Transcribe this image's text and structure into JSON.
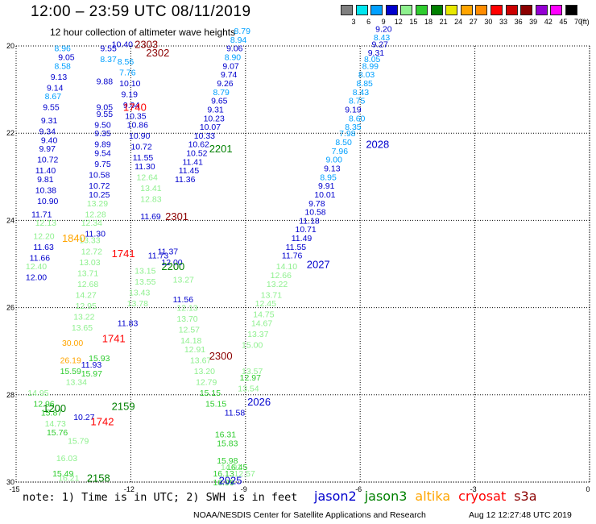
{
  "header": {
    "title": "12:00 – 23:59 UTC 08/11/2019",
    "subtitle": "12 hour collection of altimeter wave heights"
  },
  "color_scale": {
    "labels": [
      "3",
      "6",
      "9",
      "12",
      "15",
      "18",
      "21",
      "24",
      "27",
      "30",
      "33",
      "36",
      "39",
      "42",
      "45",
      "70"
    ],
    "unit": "(ft)",
    "colors": [
      "#808080",
      "#00e5ee",
      "#00a0ff",
      "#0000cd",
      "#8ef08e",
      "#2ecc2e",
      "#008000",
      "#e8e800",
      "#ffa500",
      "#ff8c00",
      "#ff0000",
      "#cc0000",
      "#8b0000",
      "#9400d3",
      "#ff00ff",
      "#000000"
    ]
  },
  "map": {
    "lat_labels": [
      "20",
      "22",
      "24",
      "26",
      "28",
      "30"
    ],
    "lon_labels": [
      "-15",
      "-12",
      "-9",
      "-6",
      "-3",
      "0"
    ]
  },
  "tracks": [
    {
      "sat": "jason2",
      "label": "2028",
      "lon": -5.85,
      "lat": 22.25
    },
    {
      "sat": "jason2",
      "label": "2027",
      "lon": -7.4,
      "lat": 25.0
    },
    {
      "sat": "jason2",
      "label": "2026",
      "lon": -8.95,
      "lat": 28.15
    },
    {
      "sat": "jason2",
      "label": "2025",
      "lon": -9.7,
      "lat": 29.95
    },
    {
      "sat": "jason3",
      "label": "2201",
      "lon": -9.95,
      "lat": 22.35
    },
    {
      "sat": "jason3",
      "label": "2200",
      "lon": -11.2,
      "lat": 25.05
    },
    {
      "sat": "jason3",
      "label": "2159",
      "lon": -12.5,
      "lat": 28.25
    },
    {
      "sat": "jason3",
      "label": "2158",
      "lon": -13.15,
      "lat": 29.9
    },
    {
      "sat": "jason3",
      "label": "1200",
      "lon": -14.3,
      "lat": 28.3
    },
    {
      "sat": "altika",
      "label": "1840",
      "lon": -13.8,
      "lat": 24.4
    },
    {
      "sat": "cryosat",
      "label": "1741",
      "lon": -12.5,
      "lat": 24.75
    },
    {
      "sat": "cryosat",
      "label": "1741",
      "lon": -12.75,
      "lat": 26.7
    },
    {
      "sat": "cryosat",
      "label": "1742",
      "lon": -13.05,
      "lat": 28.6
    },
    {
      "sat": "cryosat",
      "label": "1740",
      "lon": -12.2,
      "lat": 21.4
    },
    {
      "sat": "s3a",
      "label": "2303",
      "lon": -11.9,
      "lat": 19.95
    },
    {
      "sat": "s3a",
      "label": "2302",
      "lon": -11.6,
      "lat": 20.15
    },
    {
      "sat": "s3a",
      "label": "2301",
      "lon": -11.1,
      "lat": 23.9
    },
    {
      "sat": "s3a",
      "label": "2300",
      "lon": -9.95,
      "lat": 27.1
    }
  ],
  "wave_labels": [
    {
      "t": "8.96",
      "c": "#00a0ff",
      "lon": -14.0,
      "lat": 20.05
    },
    {
      "t": "9.05",
      "c": "#0000cd",
      "lon": -13.9,
      "lat": 20.25
    },
    {
      "t": "8.58",
      "c": "#00a0ff",
      "lon": -14.0,
      "lat": 20.45
    },
    {
      "t": "9.13",
      "c": "#0000cd",
      "lon": -14.1,
      "lat": 20.7
    },
    {
      "t": "9.14",
      "c": "#0000cd",
      "lon": -14.2,
      "lat": 20.95
    },
    {
      "t": "8.67",
      "c": "#00a0ff",
      "lon": -14.25,
      "lat": 21.15
    },
    {
      "t": "9.55",
      "c": "#0000cd",
      "lon": -14.3,
      "lat": 21.4
    },
    {
      "t": "9.31",
      "c": "#0000cd",
      "lon": -14.35,
      "lat": 21.7
    },
    {
      "t": "9.34",
      "c": "#0000cd",
      "lon": -14.4,
      "lat": 21.95
    },
    {
      "t": "9.40",
      "c": "#0000cd",
      "lon": -14.35,
      "lat": 22.15
    },
    {
      "t": "9.97",
      "c": "#0000cd",
      "lon": -14.4,
      "lat": 22.35
    },
    {
      "t": "10.72",
      "c": "#0000cd",
      "lon": -14.45,
      "lat": 22.6
    },
    {
      "t": "11.40",
      "c": "#0000cd",
      "lon": -14.5,
      "lat": 22.85
    },
    {
      "t": "9.81",
      "c": "#0000cd",
      "lon": -14.45,
      "lat": 23.05
    },
    {
      "t": "10.38",
      "c": "#0000cd",
      "lon": -14.5,
      "lat": 23.3
    },
    {
      "t": "10.90",
      "c": "#0000cd",
      "lon": -14.45,
      "lat": 23.55
    },
    {
      "t": "11.71",
      "c": "#0000cd",
      "lon": -14.6,
      "lat": 23.85
    },
    {
      "t": "12.13",
      "c": "#8ef08e",
      "lon": -14.5,
      "lat": 24.05
    },
    {
      "t": "12.20",
      "c": "#8ef08e",
      "lon": -14.55,
      "lat": 24.35
    },
    {
      "t": "11.63",
      "c": "#0000cd",
      "lon": -14.55,
      "lat": 24.6
    },
    {
      "t": "11.66",
      "c": "#0000cd",
      "lon": -14.65,
      "lat": 24.85
    },
    {
      "t": "12.40",
      "c": "#8ef08e",
      "lon": -14.75,
      "lat": 25.05
    },
    {
      "t": "12.00",
      "c": "#0000cd",
      "lon": -14.75,
      "lat": 25.3
    },
    {
      "t": "9.88",
      "c": "#0000cd",
      "lon": -12.9,
      "lat": 20.8
    },
    {
      "t": "9.05",
      "c": "#0000cd",
      "lon": -12.9,
      "lat": 21.4
    },
    {
      "t": "9.55",
      "c": "#0000cd",
      "lon": -12.9,
      "lat": 21.55
    },
    {
      "t": "9.50",
      "c": "#0000cd",
      "lon": -12.95,
      "lat": 21.8
    },
    {
      "t": "9.35",
      "c": "#0000cd",
      "lon": -12.95,
      "lat": 22.0
    },
    {
      "t": "9.89",
      "c": "#0000cd",
      "lon": -12.95,
      "lat": 22.25
    },
    {
      "t": "9.54",
      "c": "#0000cd",
      "lon": -12.95,
      "lat": 22.45
    },
    {
      "t": "9.75",
      "c": "#0000cd",
      "lon": -12.95,
      "lat": 22.7
    },
    {
      "t": "10.58",
      "c": "#0000cd",
      "lon": -13.1,
      "lat": 22.95
    },
    {
      "t": "10.72",
      "c": "#0000cd",
      "lon": -13.1,
      "lat": 23.2
    },
    {
      "t": "10.25",
      "c": "#0000cd",
      "lon": -13.1,
      "lat": 23.4
    },
    {
      "t": "13.29",
      "c": "#8ef08e",
      "lon": -13.15,
      "lat": 23.6
    },
    {
      "t": "12.28",
      "c": "#8ef08e",
      "lon": -13.2,
      "lat": 23.85
    },
    {
      "t": "12.34",
      "c": "#8ef08e",
      "lon": -13.3,
      "lat": 24.05
    },
    {
      "t": "11.30",
      "c": "#0000cd",
      "lon": -13.2,
      "lat": 24.3
    },
    {
      "t": "13.33",
      "c": "#8ef08e",
      "lon": -13.35,
      "lat": 24.45
    },
    {
      "t": "12.72",
      "c": "#8ef08e",
      "lon": -13.3,
      "lat": 24.7
    },
    {
      "t": "13.03",
      "c": "#8ef08e",
      "lon": -13.35,
      "lat": 24.95
    },
    {
      "t": "13.71",
      "c": "#8ef08e",
      "lon": -13.4,
      "lat": 25.2
    },
    {
      "t": "12.68",
      "c": "#8ef08e",
      "lon": -13.4,
      "lat": 25.45
    },
    {
      "t": "14.27",
      "c": "#8ef08e",
      "lon": -13.45,
      "lat": 25.7
    },
    {
      "t": "12.95",
      "c": "#8ef08e",
      "lon": -13.45,
      "lat": 25.95
    },
    {
      "t": "13.22",
      "c": "#8ef08e",
      "lon": -13.5,
      "lat": 26.2
    },
    {
      "t": "13.65",
      "c": "#8ef08e",
      "lon": -13.55,
      "lat": 26.45
    },
    {
      "t": "30.00",
      "c": "#ffa500",
      "lon": -13.8,
      "lat": 26.8
    },
    {
      "t": "26.19",
      "c": "#ffa500",
      "lon": -13.85,
      "lat": 27.2
    },
    {
      "t": "15.59",
      "c": "#2ecc2e",
      "lon": -13.85,
      "lat": 27.45
    },
    {
      "t": "13.34",
      "c": "#8ef08e",
      "lon": -13.7,
      "lat": 27.7
    },
    {
      "t": "14.95",
      "c": "#8ef08e",
      "lon": -14.7,
      "lat": 27.95
    },
    {
      "t": "12.96",
      "c": "#2ecc2e",
      "lon": -14.55,
      "lat": 28.2
    },
    {
      "t": "15.87",
      "c": "#2ecc2e",
      "lon": -14.35,
      "lat": 28.4
    },
    {
      "t": "14.73",
      "c": "#8ef08e",
      "lon": -14.25,
      "lat": 28.65
    },
    {
      "t": "15.76",
      "c": "#2ecc2e",
      "lon": -14.2,
      "lat": 28.85
    },
    {
      "t": "10.27",
      "c": "#0000cd",
      "lon": -13.5,
      "lat": 28.5
    },
    {
      "t": "11.93",
      "c": "#0000cd",
      "lon": -13.3,
      "lat": 27.3
    },
    {
      "t": "15.93",
      "c": "#2ecc2e",
      "lon": -13.1,
      "lat": 27.15
    },
    {
      "t": "15.97",
      "c": "#2ecc2e",
      "lon": -13.3,
      "lat": 27.5
    },
    {
      "t": "16.21",
      "c": "#8ef08e",
      "lon": -13.9,
      "lat": 29.9
    },
    {
      "t": "15.79",
      "c": "#8ef08e",
      "lon": -13.65,
      "lat": 29.05
    },
    {
      "t": "16.03",
      "c": "#8ef08e",
      "lon": -13.95,
      "lat": 29.45
    },
    {
      "t": "15.49",
      "c": "#2ecc2e",
      "lon": -14.05,
      "lat": 29.8
    },
    {
      "t": "11.83",
      "c": "#0000cd",
      "lon": -12.35,
      "lat": 26.35
    },
    {
      "t": "11.73",
      "c": "#0000cd",
      "lon": -11.55,
      "lat": 24.8
    },
    {
      "t": "12.00",
      "c": "#0000cd",
      "lon": -11.2,
      "lat": 24.95
    },
    {
      "t": "11.37",
      "c": "#0000cd",
      "lon": -11.3,
      "lat": 24.7
    },
    {
      "t": "11.69",
      "c": "#0000cd",
      "lon": -11.75,
      "lat": 23.9
    },
    {
      "t": "12.83",
      "c": "#8ef08e",
      "lon": -11.75,
      "lat": 23.5
    },
    {
      "t": "13.41",
      "c": "#8ef08e",
      "lon": -11.75,
      "lat": 23.25
    },
    {
      "t": "12.64",
      "c": "#8ef08e",
      "lon": -11.85,
      "lat": 23.0
    },
    {
      "t": "11.30",
      "c": "#0000cd",
      "lon": -11.9,
      "lat": 22.75
    },
    {
      "t": "11.55",
      "c": "#0000cd",
      "lon": -11.95,
      "lat": 22.55
    },
    {
      "t": "10.72",
      "c": "#0000cd",
      "lon": -12.0,
      "lat": 22.3
    },
    {
      "t": "10.90",
      "c": "#0000cd",
      "lon": -12.05,
      "lat": 22.05
    },
    {
      "t": "10.86",
      "c": "#0000cd",
      "lon": -12.1,
      "lat": 21.8
    },
    {
      "t": "10.35",
      "c": "#0000cd",
      "lon": -12.15,
      "lat": 21.6
    },
    {
      "t": "9.94",
      "c": "#0000cd",
      "lon": -12.2,
      "lat": 21.35
    },
    {
      "t": "9.19",
      "c": "#0000cd",
      "lon": -12.25,
      "lat": 21.1
    },
    {
      "t": "10.10",
      "c": "#0000cd",
      "lon": -12.3,
      "lat": 20.85
    },
    {
      "t": "7.76",
      "c": "#00a0ff",
      "lon": -12.3,
      "lat": 20.6
    },
    {
      "t": "8.56",
      "c": "#00a0ff",
      "lon": -12.35,
      "lat": 20.35
    },
    {
      "t": "8.37",
      "c": "#00a0ff",
      "lon": -12.8,
      "lat": 20.3
    },
    {
      "t": "10.40",
      "c": "#0000cd",
      "lon": -12.5,
      "lat": 19.95
    },
    {
      "t": "9.55",
      "c": "#0000cd",
      "lon": -12.8,
      "lat": 20.05
    },
    {
      "t": "13.15",
      "c": "#8ef08e",
      "lon": -11.9,
      "lat": 25.15
    },
    {
      "t": "13.55",
      "c": "#8ef08e",
      "lon": -11.9,
      "lat": 25.4
    },
    {
      "t": "13.43",
      "c": "#8ef08e",
      "lon": -12.05,
      "lat": 25.65
    },
    {
      "t": "13.78",
      "c": "#8ef08e",
      "lon": -12.1,
      "lat": 25.9
    },
    {
      "t": "11.56",
      "c": "#0000cd",
      "lon": -10.9,
      "lat": 25.8
    },
    {
      "t": "13.27",
      "c": "#8ef08e",
      "lon": -10.9,
      "lat": 25.35
    },
    {
      "t": "12.13",
      "c": "#8ef08e",
      "lon": -10.8,
      "lat": 26.0
    },
    {
      "t": "13.70",
      "c": "#8ef08e",
      "lon": -10.8,
      "lat": 26.25
    },
    {
      "t": "12.57",
      "c": "#8ef08e",
      "lon": -10.75,
      "lat": 26.5
    },
    {
      "t": "14.18",
      "c": "#8ef08e",
      "lon": -10.7,
      "lat": 26.75
    },
    {
      "t": "12.91",
      "c": "#8ef08e",
      "lon": -10.6,
      "lat": 26.95
    },
    {
      "t": "13.67",
      "c": "#8ef08e",
      "lon": -10.45,
      "lat": 27.2
    },
    {
      "t": "13.20",
      "c": "#8ef08e",
      "lon": -10.35,
      "lat": 27.45
    },
    {
      "t": "12.79",
      "c": "#8ef08e",
      "lon": -10.3,
      "lat": 27.7
    },
    {
      "t": "15.15",
      "c": "#2ecc2e",
      "lon": -10.2,
      "lat": 27.95
    },
    {
      "t": "15.15",
      "c": "#2ecc2e",
      "lon": -10.05,
      "lat": 28.2
    },
    {
      "t": "11.58",
      "c": "#0000cd",
      "lon": -9.55,
      "lat": 28.4
    },
    {
      "t": "16.31",
      "c": "#2ecc2e",
      "lon": -9.8,
      "lat": 28.9
    },
    {
      "t": "15.83",
      "c": "#2ecc2e",
      "lon": -9.75,
      "lat": 29.1
    },
    {
      "t": "15.98",
      "c": "#2ecc2e",
      "lon": -9.75,
      "lat": 29.5
    },
    {
      "t": "16.45",
      "c": "#2ecc2e",
      "lon": -9.5,
      "lat": 29.65
    },
    {
      "t": "16.13",
      "c": "#2ecc2e",
      "lon": -9.85,
      "lat": 29.8
    },
    {
      "t": "16.99",
      "c": "#2ecc2e",
      "lon": -9.85,
      "lat": 30.0
    },
    {
      "t": "14.91",
      "c": "#8ef08e",
      "lon": -9.65,
      "lat": 29.65
    },
    {
      "t": "12.57",
      "c": "#8ef08e",
      "lon": -9.3,
      "lat": 29.8
    },
    {
      "t": "13.57",
      "c": "#8ef08e",
      "lon": -9.1,
      "lat": 27.45
    },
    {
      "t": "12.97",
      "c": "#2ecc2e",
      "lon": -9.15,
      "lat": 27.6
    },
    {
      "t": "13.54",
      "c": "#8ef08e",
      "lon": -9.2,
      "lat": 27.85
    },
    {
      "t": "15.00",
      "c": "#8ef08e",
      "lon": -9.1,
      "lat": 26.85
    },
    {
      "t": "13.37",
      "c": "#8ef08e",
      "lon": -8.95,
      "lat": 26.6
    },
    {
      "t": "14.67",
      "c": "#8ef08e",
      "lon": -8.85,
      "lat": 26.35
    },
    {
      "t": "14.75",
      "c": "#8ef08e",
      "lon": -8.8,
      "lat": 26.15
    },
    {
      "t": "12.45",
      "c": "#8ef08e",
      "lon": -8.75,
      "lat": 25.9
    },
    {
      "t": "13.71",
      "c": "#8ef08e",
      "lon": -8.6,
      "lat": 25.7
    },
    {
      "t": "13.22",
      "c": "#8ef08e",
      "lon": -8.45,
      "lat": 25.45
    },
    {
      "t": "12.66",
      "c": "#8ef08e",
      "lon": -8.35,
      "lat": 25.25
    },
    {
      "t": "14.10",
      "c": "#8ef08e",
      "lon": -8.2,
      "lat": 25.05
    },
    {
      "t": "11.76",
      "c": "#0000cd",
      "lon": -8.05,
      "lat": 24.8
    },
    {
      "t": "11.55",
      "c": "#0000cd",
      "lon": -7.95,
      "lat": 24.6
    },
    {
      "t": "11.49",
      "c": "#0000cd",
      "lon": -7.8,
      "lat": 24.4
    },
    {
      "t": "10.71",
      "c": "#0000cd",
      "lon": -7.7,
      "lat": 24.2
    },
    {
      "t": "11.18",
      "c": "#0000cd",
      "lon": -7.6,
      "lat": 24.0
    },
    {
      "t": "10.58",
      "c": "#0000cd",
      "lon": -7.45,
      "lat": 23.8
    },
    {
      "t": "9.78",
      "c": "#0000cd",
      "lon": -7.35,
      "lat": 23.6
    },
    {
      "t": "10.01",
      "c": "#0000cd",
      "lon": -7.2,
      "lat": 23.4
    },
    {
      "t": "9.91",
      "c": "#0000cd",
      "lon": -7.1,
      "lat": 23.2
    },
    {
      "t": "8.95",
      "c": "#00a0ff",
      "lon": -7.05,
      "lat": 23.0
    },
    {
      "t": "9.13",
      "c": "#0000cd",
      "lon": -6.95,
      "lat": 22.8
    },
    {
      "t": "9.00",
      "c": "#00a0ff",
      "lon": -6.9,
      "lat": 22.6
    },
    {
      "t": "7.96",
      "c": "#00a0ff",
      "lon": -6.75,
      "lat": 22.4
    },
    {
      "t": "8.50",
      "c": "#00a0ff",
      "lon": -6.65,
      "lat": 22.2
    },
    {
      "t": "7.98",
      "c": "#00a0ff",
      "lon": -6.55,
      "lat": 22.0
    },
    {
      "t": "8.35",
      "c": "#00a0ff",
      "lon": -6.4,
      "lat": 21.85
    },
    {
      "t": "8.60",
      "c": "#00a0ff",
      "lon": -6.3,
      "lat": 21.65
    },
    {
      "t": "9.19",
      "c": "#0000cd",
      "lon": -6.4,
      "lat": 21.45
    },
    {
      "t": "8.75",
      "c": "#00a0ff",
      "lon": -6.3,
      "lat": 21.25
    },
    {
      "t": "8.43",
      "c": "#00a0ff",
      "lon": -6.2,
      "lat": 21.05
    },
    {
      "t": "8.85",
      "c": "#00a0ff",
      "lon": -6.1,
      "lat": 20.85
    },
    {
      "t": "8.03",
      "c": "#00a0ff",
      "lon": -6.05,
      "lat": 20.65
    },
    {
      "t": "8.99",
      "c": "#00a0ff",
      "lon": -5.95,
      "lat": 20.45
    },
    {
      "t": "8.05",
      "c": "#00a0ff",
      "lon": -5.9,
      "lat": 20.3
    },
    {
      "t": "9.31",
      "c": "#0000cd",
      "lon": -5.8,
      "lat": 20.15
    },
    {
      "t": "9.27",
      "c": "#0000cd",
      "lon": -5.7,
      "lat": 19.95
    },
    {
      "t": "8.43",
      "c": "#00a0ff",
      "lon": -5.65,
      "lat": 19.8
    },
    {
      "t": "9.20",
      "c": "#0000cd",
      "lon": -5.6,
      "lat": 19.6
    },
    {
      "t": "8.79",
      "c": "#00a0ff",
      "lon": -9.3,
      "lat": 19.65
    },
    {
      "t": "8.94",
      "c": "#00a0ff",
      "lon": -9.4,
      "lat": 19.85
    },
    {
      "t": "9.06",
      "c": "#0000cd",
      "lon": -9.5,
      "lat": 20.05
    },
    {
      "t": "8.90",
      "c": "#00a0ff",
      "lon": -9.55,
      "lat": 20.25
    },
    {
      "t": "9.07",
      "c": "#0000cd",
      "lon": -9.6,
      "lat": 20.45
    },
    {
      "t": "9.74",
      "c": "#0000cd",
      "lon": -9.65,
      "lat": 20.65
    },
    {
      "t": "9.26",
      "c": "#0000cd",
      "lon": -9.75,
      "lat": 20.85
    },
    {
      "t": "8.79",
      "c": "#00a0ff",
      "lon": -9.85,
      "lat": 21.05
    },
    {
      "t": "9.65",
      "c": "#0000cd",
      "lon": -9.9,
      "lat": 21.25
    },
    {
      "t": "9.31",
      "c": "#0000cd",
      "lon": -10.0,
      "lat": 21.45
    },
    {
      "t": "10.23",
      "c": "#0000cd",
      "lon": -10.1,
      "lat": 21.65
    },
    {
      "t": "10.07",
      "c": "#0000cd",
      "lon": -10.2,
      "lat": 21.85
    },
    {
      "t": "10.33",
      "c": "#0000cd",
      "lon": -10.35,
      "lat": 22.05
    },
    {
      "t": "10.62",
      "c": "#0000cd",
      "lon": -10.5,
      "lat": 22.25
    },
    {
      "t": "10.52",
      "c": "#0000cd",
      "lon": -10.55,
      "lat": 22.45
    },
    {
      "t": "11.41",
      "c": "#0000cd",
      "lon": -10.65,
      "lat": 22.65
    },
    {
      "t": "11.45",
      "c": "#0000cd",
      "lon": -10.75,
      "lat": 22.85
    },
    {
      "t": "11.36",
      "c": "#0000cd",
      "lon": -10.85,
      "lat": 23.05
    }
  ],
  "note": "note: 1) Time is in UTC; 2) SWH is in feet",
  "legend": [
    {
      "name": "jason2",
      "color": "#0000cd"
    },
    {
      "name": "jason3",
      "color": "#008000"
    },
    {
      "name": "altika",
      "color": "#ffa500"
    },
    {
      "name": "cryosat",
      "color": "#ff0000"
    },
    {
      "name": "s3a",
      "color": "#8b0000"
    }
  ],
  "footer": {
    "credit": "NOAA/NESDIS Center for Satellite Applications and Research",
    "timestamp": "Aug 12 12:27:48 UTC 2019"
  }
}
